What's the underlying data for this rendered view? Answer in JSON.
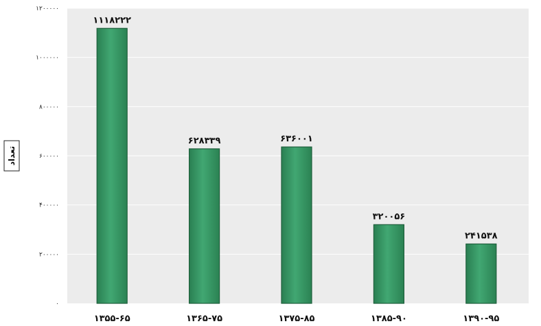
{
  "chart_data": {
    "type": "bar",
    "categories": [
      "۱۳۵۵-۶۵",
      "۱۳۶۵-۷۵",
      "۱۳۷۵-۸۵",
      "۱۳۸۵-۹۰",
      "۱۳۹۰-۹۵"
    ],
    "values": [
      1118222,
      628339,
      636001,
      320056,
      241538
    ],
    "value_labels": [
      "۱۱۱۸۲۲۲",
      "۶۲۸۳۳۹",
      "۶۳۶۰۰۱",
      "۳۲۰۰۵۶",
      "۲۴۱۵۳۸"
    ],
    "ylabel": "تعداد",
    "ylim": [
      0,
      1200000
    ],
    "yticks": [
      0,
      200000,
      400000,
      600000,
      800000,
      1000000,
      1200000
    ],
    "ytick_labels": [
      "۰",
      "۲۰۰۰۰۰",
      "۴۰۰۰۰۰",
      "۶۰۰۰۰۰",
      "۸۰۰۰۰۰",
      "۱۰۰۰۰۰۰",
      "۱۲۰۰۰۰۰"
    ],
    "grid": true,
    "colors": {
      "bar": "#3a9a68",
      "bar_edge": "#1f5f3c",
      "plot_bg": "#ececec",
      "grid": "#ffffff"
    }
  }
}
